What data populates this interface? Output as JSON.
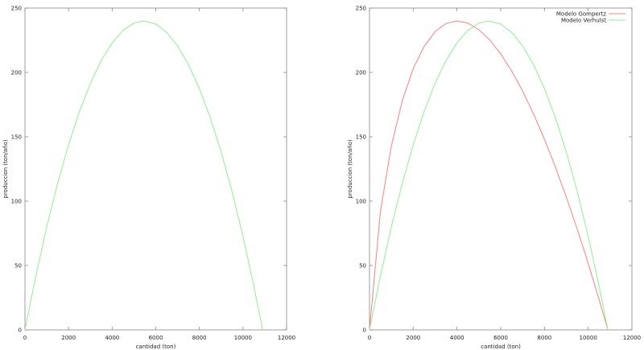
{
  "chart_data": [
    {
      "type": "line",
      "xlabel": "cantidad (ton)",
      "ylabel": "produccion (ton/año)",
      "xlim": [
        0,
        12000
      ],
      "ylim": [
        0,
        250
      ],
      "xticks": [
        "0",
        "2000",
        "4000",
        "6000",
        "8000",
        "10000",
        "12000"
      ],
      "yticks": [
        "0",
        "50",
        "100",
        "150",
        "200",
        "250"
      ],
      "grid": false,
      "series": [
        {
          "color": "#90ee90",
          "x": [
            0,
            500,
            1000,
            1500,
            2000,
            2500,
            3000,
            3500,
            4000,
            4500,
            5000,
            5450,
            6000,
            6500,
            7000,
            7500,
            8000,
            8500,
            9000,
            9500,
            10000,
            10500,
            10900
          ],
          "y": [
            0,
            42.0,
            80.0,
            113.9,
            143.8,
            169.7,
            191.5,
            209.3,
            223.0,
            232.7,
            238.4,
            240,
            237.6,
            231.1,
            220.6,
            206.0,
            187.5,
            164.8,
            138.2,
            107.5,
            72.7,
            33.9,
            0
          ]
        }
      ]
    },
    {
      "type": "line",
      "xlabel": "cantidad (ton)",
      "ylabel": "produccion (ton/año)",
      "xlim": [
        0,
        12000
      ],
      "ylim": [
        0,
        250
      ],
      "xticks": [
        "0",
        "2000",
        "4000",
        "6000",
        "8000",
        "10000",
        "12000"
      ],
      "yticks": [
        "0",
        "50",
        "100",
        "150",
        "200",
        "250"
      ],
      "grid": false,
      "legend": "top-right",
      "series": [
        {
          "name": "Modelo Gompertz",
          "color": "#ff8080",
          "x": [
            0,
            500,
            1000,
            1500,
            2000,
            2500,
            3000,
            3500,
            4000,
            4500,
            5000,
            5500,
            6000,
            6500,
            7000,
            7500,
            8000,
            8500,
            9000,
            9500,
            10000,
            10500,
            10900
          ],
          "y": [
            0,
            92.2,
            143.0,
            178.1,
            203.0,
            220.3,
            231.7,
            238.0,
            240.0,
            238.3,
            233.2,
            225.2,
            214.4,
            201.1,
            185.6,
            167.8,
            148.1,
            126.5,
            103.2,
            78.2,
            51.6,
            23.5,
            0
          ]
        },
        {
          "name": "Modelo Verhulst",
          "color": "#90ee90",
          "x": [
            0,
            500,
            1000,
            1500,
            2000,
            2500,
            3000,
            3500,
            4000,
            4500,
            5000,
            5450,
            6000,
            6500,
            7000,
            7500,
            8000,
            8500,
            9000,
            9500,
            10000,
            10500,
            10900
          ],
          "y": [
            0,
            42.0,
            80.0,
            113.9,
            143.8,
            169.7,
            191.5,
            209.3,
            223.0,
            232.7,
            238.4,
            240,
            237.6,
            231.1,
            220.6,
            206.0,
            187.5,
            164.8,
            138.2,
            107.5,
            72.7,
            33.9,
            0
          ]
        }
      ]
    }
  ]
}
